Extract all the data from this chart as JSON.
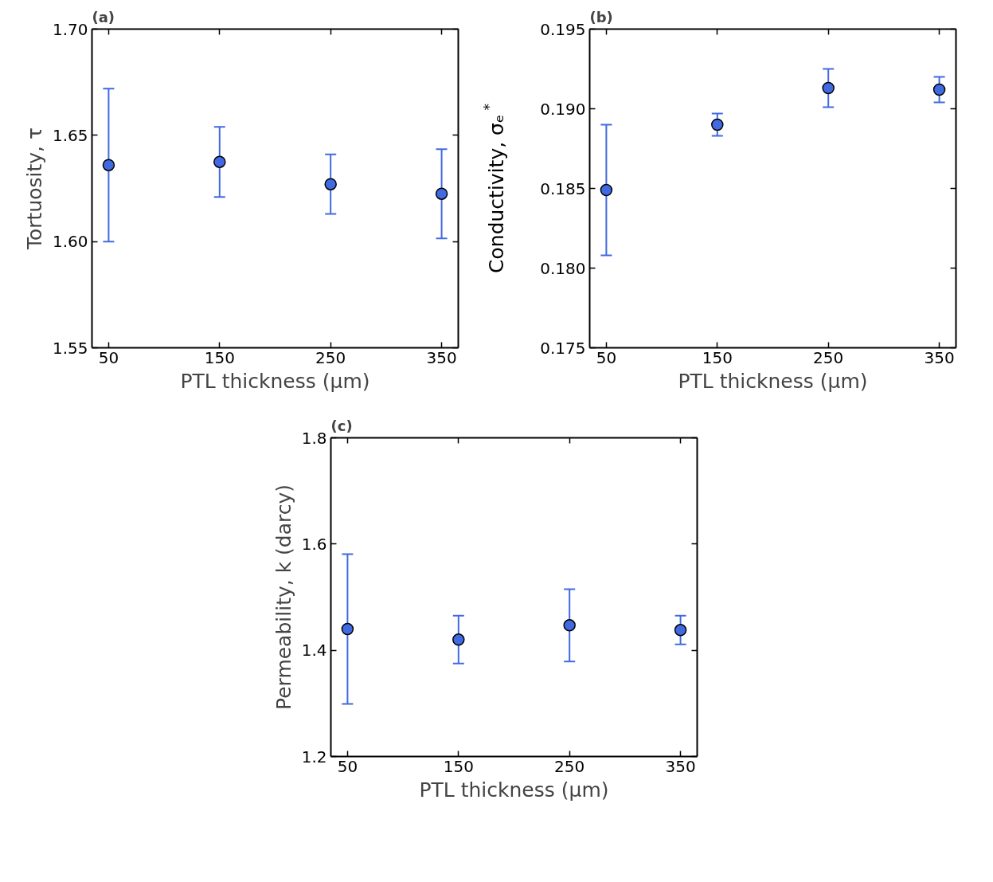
{
  "chart_data": [
    {
      "type": "scatter",
      "title": "(a)",
      "xlabel": "PTL thickness (μm)",
      "ylabel": "Tortuosity, τ",
      "x": [
        50,
        150,
        250,
        350
      ],
      "series": [
        {
          "color": "#4169e1",
          "values": [
            1.636,
            1.6375,
            1.627,
            1.6225
          ],
          "errors": [
            0.036,
            0.0165,
            0.014,
            0.021
          ]
        }
      ],
      "xlim": [
        35,
        365
      ],
      "ylim": [
        1.55,
        1.7
      ],
      "xticks": [
        50,
        150,
        250,
        350
      ],
      "yticks": [
        {
          "value": 1.55,
          "label": "1.55"
        },
        {
          "value": 1.6,
          "label": "1.60"
        },
        {
          "value": 1.65,
          "label": "1.65"
        },
        {
          "value": 1.7,
          "label": "1.70"
        }
      ],
      "marker": "circle",
      "grid": false
    },
    {
      "type": "scatter",
      "title": "(b)",
      "xlabel": "PTL thickness (μm)",
      "ylabel": "Conductivity, σₑ$^{*}$",
      "x": [
        50,
        150,
        250,
        350
      ],
      "series": [
        {
          "color": "#4169e1",
          "values": [
            0.1849,
            0.189,
            0.1913,
            0.1912
          ],
          "errors": [
            0.0041,
            0.0007,
            0.0012,
            0.0008
          ]
        }
      ],
      "xlim": [
        35,
        365
      ],
      "ylim": [
        0.175,
        0.195
      ],
      "xticks": [
        50,
        150,
        250,
        350
      ],
      "yticks": [
        {
          "value": 0.175,
          "label": "0.175"
        },
        {
          "value": 0.18,
          "label": "0.180"
        },
        {
          "value": 0.185,
          "label": "0.185"
        },
        {
          "value": 0.19,
          "label": "0.190"
        },
        {
          "value": 0.195,
          "label": "0.195"
        }
      ],
      "marker": "circle",
      "grid": false
    },
    {
      "type": "scatter",
      "title": "(c)",
      "xlabel": "PTL thickness (μm)",
      "ylabel": "Permeability, k (darcy)",
      "x": [
        50,
        150,
        250,
        350
      ],
      "series": [
        {
          "color": "#4169e1",
          "values": [
            1.44,
            1.42,
            1.447,
            1.438
          ],
          "errors": [
            0.141,
            0.045,
            0.068,
            0.027
          ]
        }
      ],
      "xlim": [
        35,
        365
      ],
      "ylim": [
        1.2,
        1.8
      ],
      "xticks": [
        50,
        150,
        250,
        350
      ],
      "yticks": [
        1.2,
        1.4,
        1.6,
        1.8
      ],
      "marker": "circle",
      "grid": false
    }
  ]
}
